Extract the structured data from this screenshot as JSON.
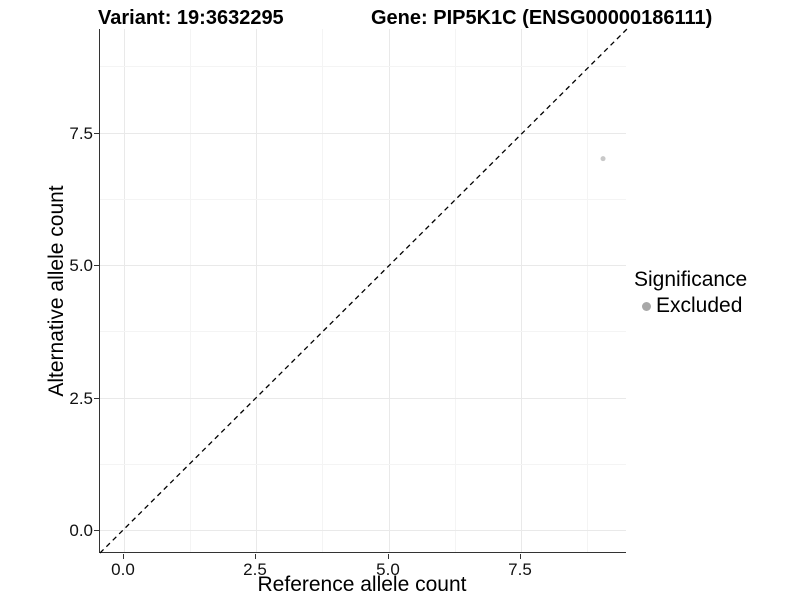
{
  "header": {
    "variant_title": "Variant: 19:3632295",
    "gene_title": "Gene: PIP5K1C (ENSG00000186111)"
  },
  "axes": {
    "x": {
      "label": "Reference allele count",
      "tick_labels": [
        "0.0",
        "2.5",
        "5.0",
        "7.5"
      ]
    },
    "y": {
      "label": "Alternative allele count",
      "tick_labels": [
        "0.0",
        "2.5",
        "5.0",
        "7.5"
      ]
    }
  },
  "legend": {
    "title": "Significance",
    "items": [
      {
        "label": "Excluded",
        "color": "#a8a8a8",
        "shape": "circle"
      }
    ]
  },
  "colors": {
    "point": "#c9c9c9",
    "legend_point": "#a8a8a8",
    "grid_major": "#e9e9e9",
    "grid_minor": "#f4f4f4",
    "axis_line": "#333333",
    "identity_line": "#000000"
  },
  "chart_data": {
    "type": "scatter",
    "title_left": "Variant: 19:3632295",
    "title_right": "Gene: PIP5K1C (ENSG00000186111)",
    "xlabel": "Reference allele count",
    "ylabel": "Alternative allele count",
    "xlim": [
      -0.45,
      9.45
    ],
    "ylim": [
      -0.45,
      9.45
    ],
    "x_ticks": [
      0.0,
      2.5,
      5.0,
      7.5
    ],
    "y_ticks": [
      0.0,
      2.5,
      5.0,
      7.5
    ],
    "grid": true,
    "legend_position": "right",
    "series": [
      {
        "name": "Excluded",
        "color": "#c9c9c9",
        "point_radius": 2.5,
        "points": [
          {
            "x": 9,
            "y": 7
          }
        ]
      }
    ],
    "reference_line": {
      "type": "identity",
      "style": "dashed",
      "color": "#000000",
      "from": [
        -0.45,
        -0.45
      ],
      "to": [
        9.45,
        9.45
      ]
    }
  }
}
